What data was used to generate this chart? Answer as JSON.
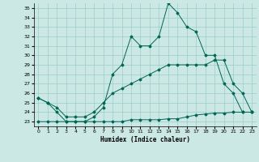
{
  "xlabel": "Humidex (Indice chaleur)",
  "ylabel": "",
  "background_color": "#cce8e4",
  "grid_color": "#99cccc",
  "line_color": "#006655",
  "xlim": [
    -0.5,
    23.5
  ],
  "ylim": [
    22.5,
    35.5
  ],
  "yticks": [
    23,
    24,
    25,
    26,
    27,
    28,
    29,
    30,
    31,
    32,
    33,
    34,
    35
  ],
  "xticks": [
    0,
    1,
    2,
    3,
    4,
    5,
    6,
    7,
    8,
    9,
    10,
    11,
    12,
    13,
    14,
    15,
    16,
    17,
    18,
    19,
    20,
    21,
    22,
    23
  ],
  "line1_x": [
    0,
    1,
    2,
    3,
    4,
    5,
    6,
    7,
    8,
    9,
    10,
    11,
    12,
    13,
    14,
    15,
    16,
    17,
    18,
    19,
    20,
    21,
    22,
    23
  ],
  "line1_y": [
    25.5,
    25.0,
    24.0,
    23.0,
    23.0,
    23.0,
    23.5,
    24.5,
    28.0,
    29.0,
    32.0,
    31.0,
    31.0,
    32.0,
    35.5,
    34.5,
    33.0,
    32.5,
    30.0,
    30.0,
    27.0,
    26.0,
    24.0,
    24.0
  ],
  "line2_x": [
    0,
    1,
    2,
    3,
    4,
    5,
    6,
    7,
    8,
    9,
    10,
    11,
    12,
    13,
    14,
    15,
    16,
    17,
    18,
    19,
    20,
    21,
    22,
    23
  ],
  "line2_y": [
    25.5,
    25.0,
    24.5,
    23.5,
    23.5,
    23.5,
    24.0,
    25.0,
    26.0,
    26.5,
    27.0,
    27.5,
    28.0,
    28.5,
    29.0,
    29.0,
    29.0,
    29.0,
    29.0,
    29.5,
    29.5,
    27.0,
    26.0,
    24.0
  ],
  "line3_x": [
    0,
    1,
    2,
    3,
    4,
    5,
    6,
    7,
    8,
    9,
    10,
    11,
    12,
    13,
    14,
    15,
    16,
    17,
    18,
    19,
    20,
    21,
    22,
    23
  ],
  "line3_y": [
    23.0,
    23.0,
    23.0,
    23.0,
    23.0,
    23.0,
    23.0,
    23.0,
    23.0,
    23.0,
    23.2,
    23.2,
    23.2,
    23.2,
    23.3,
    23.3,
    23.5,
    23.7,
    23.8,
    23.9,
    23.9,
    24.0,
    24.0,
    24.0
  ]
}
